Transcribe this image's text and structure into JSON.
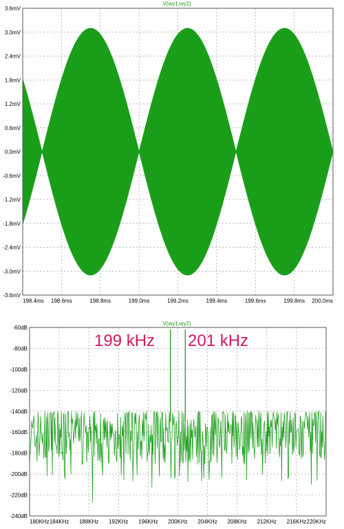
{
  "colors": {
    "trace": "#1a9e1a",
    "annotation": "#d6195e",
    "grid": "#9a9a9a"
  },
  "chart_data": [
    {
      "type": "line",
      "title": "V(wy1,wy2)",
      "xlabel": "",
      "ylabel": "",
      "x_ticks": [
        "198.4ms",
        "198.6ms",
        "198.8ms",
        "199.0ms",
        "199.2ms",
        "199.4ms",
        "199.6ms",
        "199.8ms",
        "200.0ms"
      ],
      "y_ticks": [
        "3.6mV",
        "3.0mV",
        "2.4mV",
        "1.8mV",
        "1.2mV",
        "0.6mV",
        "0.0mV",
        "-0.6mV",
        "-1.2mV",
        "-1.8mV",
        "-2.4mV",
        "-3.0mV",
        "-3.6mV"
      ],
      "xlim": [
        198.4,
        200.0
      ],
      "ylim": [
        -3.6,
        3.6
      ],
      "grid": true,
      "series": [
        {
          "carrier_frequency_khz": 200,
          "envelope_frequency_hz": 1000,
          "peak_mV": 3.1,
          "envelope": {
            "x": [
              198.4,
              198.5,
              198.75,
              199.0,
              199.25,
              199.5,
              199.75,
              200.0
            ],
            "y": [
              1.85,
              0.0,
              3.1,
              0.0,
              3.1,
              0.0,
              3.1,
              0.0
            ]
          }
        }
      ]
    },
    {
      "type": "line",
      "title": "V(wy1,wy2)",
      "xlabel": "",
      "ylabel": "",
      "x_ticks": [
        "180KHz",
        "184KHz",
        "188KHz",
        "192KHz",
        "196KHz",
        "200KHz",
        "204KHz",
        "208KHz",
        "212KHz",
        "216KHz",
        "220KHz"
      ],
      "y_ticks": [
        "-60dB",
        "-80dB",
        "-100dB",
        "-120dB",
        "-140dB",
        "-160dB",
        "-180dB",
        "-200dB",
        "-220dB",
        "-240dB"
      ],
      "xlim": [
        180,
        220
      ],
      "ylim": [
        -240,
        -60
      ],
      "grid": true,
      "annotations": [
        "199 kHz",
        "201 kHz"
      ],
      "series": [
        {
          "peaks": [
            {
              "x": 199,
              "y": -62
            },
            {
              "x": 201,
              "y": -62
            }
          ],
          "noise_floor_db": [
            -200,
            -140
          ],
          "notable_dips": [
            {
              "x": 188.5,
              "y": -227
            },
            {
              "x": 196.5,
              "y": -213
            },
            {
              "x": 218,
              "y": -210
            }
          ]
        }
      ]
    }
  ]
}
